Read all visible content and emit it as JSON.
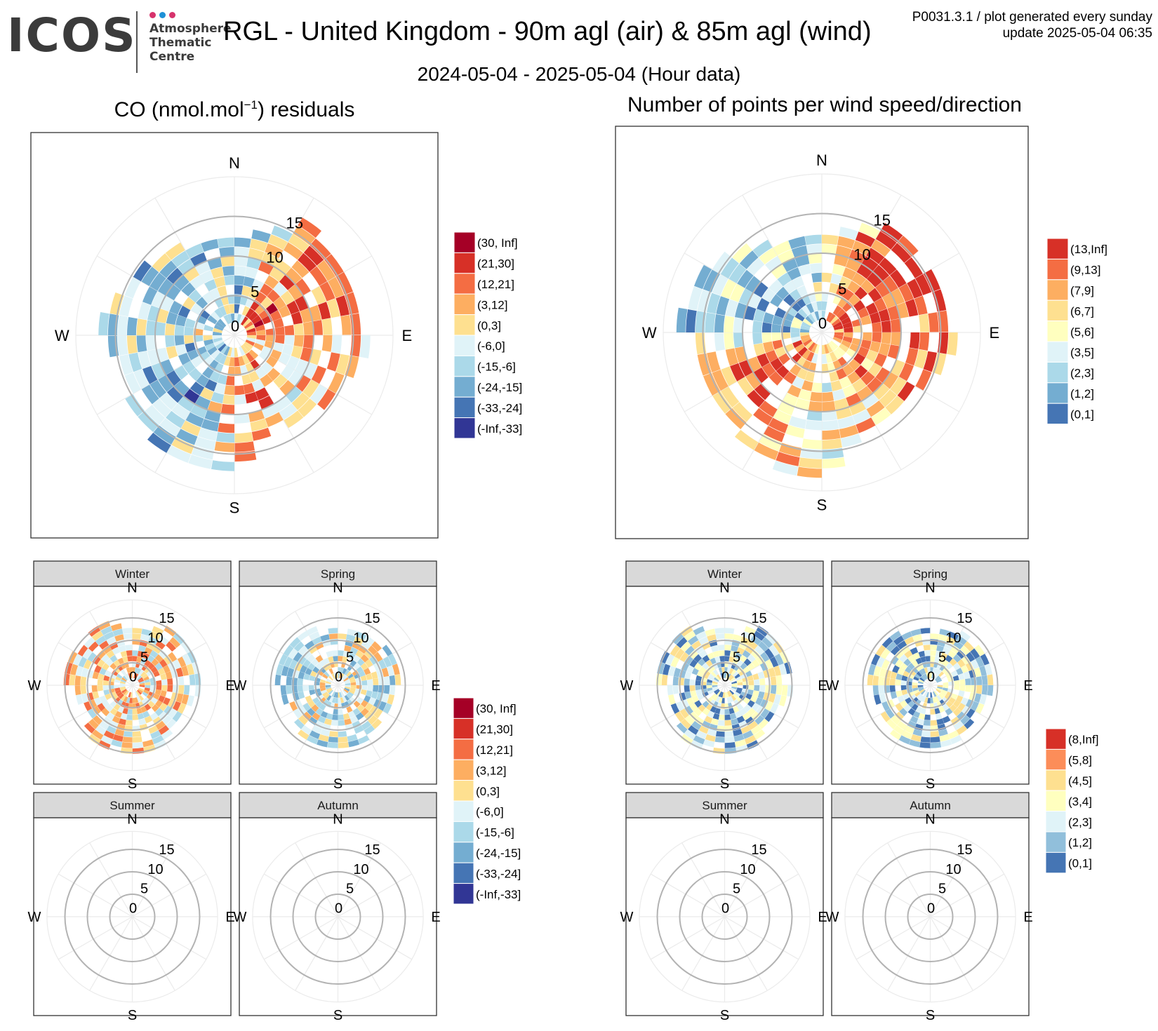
{
  "header": {
    "logo_text": "ICOS",
    "logo_sub": [
      "Atmosphere",
      "Thematic",
      "Centre"
    ],
    "logo_dot_colors": [
      "#d6336c",
      "#1e90d6",
      "#d6336c"
    ],
    "title": "RGL - United Kingdom - 90m agl (air) & 85m agl (wind)",
    "plot_code": "P0031.3.1 / plot generated every sunday",
    "update": "update  2025-05-04 06:35",
    "date_range": "2024-05-04 - 2025-05-04 (Hour data)"
  },
  "left_title_parts": {
    "pre": "CO (nmol.mol",
    "sup": "−1",
    "post": ") residuals"
  },
  "right_title": "Number of points per wind speed/direction",
  "compass": {
    "n": "N",
    "e": "E",
    "s": "S",
    "w": "W"
  },
  "chart_data": [
    {
      "id": "co-residuals-annual",
      "type": "heatmap",
      "subtype": "polar wind rose (direction x wind speed)",
      "radial_ticks": [
        0,
        5,
        10,
        15
      ],
      "radial_max": 20,
      "legend": [
        {
          "label": "(30, Inf]",
          "color": "#a50026"
        },
        {
          "label": "(21,30]",
          "color": "#d73027"
        },
        {
          "label": "(12,21]",
          "color": "#f46d43"
        },
        {
          "label": "(3,12]",
          "color": "#fdae61"
        },
        {
          "label": "(0,3]",
          "color": "#fee090"
        },
        {
          "label": "(-6,0]",
          "color": "#e0f3f8"
        },
        {
          "label": "(-15,-6]",
          "color": "#abd9e9"
        },
        {
          "label": "(-24,-15]",
          "color": "#74add1"
        },
        {
          "label": "(-33,-24]",
          "color": "#4575b4"
        },
        {
          "label": "(-Inf,-33]",
          "color": "#313695"
        }
      ],
      "direction_sectors": [
        {
          "dir_deg": 0,
          "max_speed": 12,
          "mean_class": 6
        },
        {
          "dir_deg": 30,
          "max_speed": 16,
          "mean_class": 3
        },
        {
          "dir_deg": 60,
          "max_speed": 15,
          "mean_class": 2
        },
        {
          "dir_deg": 90,
          "max_speed": 16,
          "mean_class": 3
        },
        {
          "dir_deg": 120,
          "max_speed": 14,
          "mean_class": 4
        },
        {
          "dir_deg": 150,
          "max_speed": 12,
          "mean_class": 3
        },
        {
          "dir_deg": 180,
          "max_speed": 17,
          "mean_class": 4
        },
        {
          "dir_deg": 210,
          "max_speed": 17,
          "mean_class": 7
        },
        {
          "dir_deg": 240,
          "max_speed": 14,
          "mean_class": 6
        },
        {
          "dir_deg": 270,
          "max_speed": 16,
          "mean_class": 5
        },
        {
          "dir_deg": 300,
          "max_speed": 14,
          "mean_class": 6
        },
        {
          "dir_deg": 330,
          "max_speed": 12,
          "mean_class": 6
        }
      ]
    },
    {
      "id": "points-per-bin-annual",
      "type": "heatmap",
      "subtype": "polar wind rose (direction x wind speed)",
      "radial_ticks": [
        0,
        5,
        10,
        15
      ],
      "radial_max": 20,
      "legend": [
        {
          "label": "(13,Inf]",
          "color": "#d73027"
        },
        {
          "label": "(9,13]",
          "color": "#f46d43"
        },
        {
          "label": "(7,9]",
          "color": "#fdae61"
        },
        {
          "label": "(6,7]",
          "color": "#fee090"
        },
        {
          "label": "(5,6]",
          "color": "#ffffbf"
        },
        {
          "label": "(3,5]",
          "color": "#e0f3f8"
        },
        {
          "label": "(2,3]",
          "color": "#abd9e9"
        },
        {
          "label": "(1,2]",
          "color": "#74add1"
        },
        {
          "label": "(0,1]",
          "color": "#4575b4"
        }
      ],
      "direction_sectors": [
        {
          "dir_deg": 0,
          "max_speed": 12,
          "mean_class": 5
        },
        {
          "dir_deg": 30,
          "max_speed": 15,
          "mean_class": 1
        },
        {
          "dir_deg": 60,
          "max_speed": 15,
          "mean_class": 0
        },
        {
          "dir_deg": 90,
          "max_speed": 16,
          "mean_class": 1
        },
        {
          "dir_deg": 120,
          "max_speed": 14,
          "mean_class": 2
        },
        {
          "dir_deg": 150,
          "max_speed": 13,
          "mean_class": 3
        },
        {
          "dir_deg": 180,
          "max_speed": 18,
          "mean_class": 4
        },
        {
          "dir_deg": 210,
          "max_speed": 16,
          "mean_class": 2
        },
        {
          "dir_deg": 240,
          "max_speed": 15,
          "mean_class": 1
        },
        {
          "dir_deg": 270,
          "max_speed": 18,
          "mean_class": 6
        },
        {
          "dir_deg": 300,
          "max_speed": 15,
          "mean_class": 6
        },
        {
          "dir_deg": 330,
          "max_speed": 12,
          "mean_class": 6
        }
      ]
    },
    {
      "id": "co-residuals-seasonal",
      "type": "heatmap",
      "subtype": "faceted polar wind roses by season",
      "radial_ticks": [
        0,
        5,
        10,
        15
      ],
      "facets": [
        {
          "label": "Winter",
          "has_data": true,
          "max_speed": 15,
          "mean_class": 4
        },
        {
          "label": "Spring",
          "has_data": true,
          "max_speed": 14,
          "mean_class": 5
        },
        {
          "label": "Summer",
          "has_data": false
        },
        {
          "label": "Autumn",
          "has_data": false
        }
      ],
      "legend": [
        {
          "label": "(30, Inf]",
          "color": "#a50026"
        },
        {
          "label": "(21,30]",
          "color": "#d73027"
        },
        {
          "label": "(12,21]",
          "color": "#f46d43"
        },
        {
          "label": "(3,12]",
          "color": "#fdae61"
        },
        {
          "label": "(0,3]",
          "color": "#fee090"
        },
        {
          "label": "(-6,0]",
          "color": "#e0f3f8"
        },
        {
          "label": "(-15,-6]",
          "color": "#abd9e9"
        },
        {
          "label": "(-24,-15]",
          "color": "#74add1"
        },
        {
          "label": "(-33,-24]",
          "color": "#4575b4"
        },
        {
          "label": "(-Inf,-33]",
          "color": "#313695"
        }
      ]
    },
    {
      "id": "points-per-bin-seasonal",
      "type": "heatmap",
      "subtype": "faceted polar wind roses by season",
      "radial_ticks": [
        0,
        5,
        10,
        15
      ],
      "facets": [
        {
          "label": "Winter",
          "has_data": true,
          "max_speed": 15,
          "mean_class": 4
        },
        {
          "label": "Spring",
          "has_data": true,
          "max_speed": 14,
          "mean_class": 4
        },
        {
          "label": "Summer",
          "has_data": false
        },
        {
          "label": "Autumn",
          "has_data": false
        }
      ],
      "legend": [
        {
          "label": "(8,Inf]",
          "color": "#d73027"
        },
        {
          "label": "(5,8]",
          "color": "#fc8d59"
        },
        {
          "label": "(4,5]",
          "color": "#fee090"
        },
        {
          "label": "(3,4]",
          "color": "#ffffbf"
        },
        {
          "label": "(2,3]",
          "color": "#e0f3f8"
        },
        {
          "label": "(1,2]",
          "color": "#91bfdb"
        },
        {
          "label": "(0,1]",
          "color": "#4575b4"
        }
      ]
    }
  ]
}
